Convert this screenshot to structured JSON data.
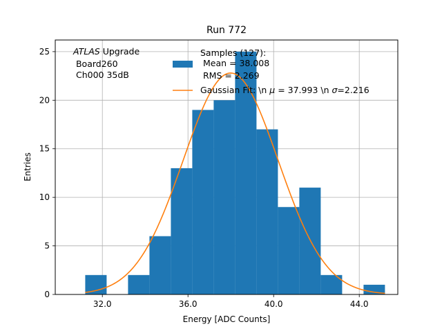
{
  "chart_data": {
    "type": "bar",
    "title": "Run 772",
    "xlabel": "Energy [ADC Counts]",
    "ylabel": "Entries",
    "xlim": [
      29.8,
      45.8
    ],
    "ylim": [
      0,
      26.2
    ],
    "grid": true,
    "x_ticks": [
      32.0,
      36.0,
      40.0,
      44.0
    ],
    "x_tick_labels": [
      "32.0",
      "36.0",
      "40.0",
      "44.0"
    ],
    "y_ticks": [
      0,
      5,
      10,
      15,
      20,
      25
    ],
    "y_tick_labels": [
      "0",
      "5",
      "10",
      "15",
      "20",
      "25"
    ],
    "histogram": {
      "name": "Samples (127):\n Mean = 38.008\n RMS = 2.269",
      "color": "#1f77b4",
      "bins": [
        {
          "x0": 31.2,
          "x1": 32.2,
          "count": 2
        },
        {
          "x0": 32.2,
          "x1": 33.2,
          "count": 0
        },
        {
          "x0": 33.2,
          "x1": 34.2,
          "count": 2
        },
        {
          "x0": 34.2,
          "x1": 35.2,
          "count": 6
        },
        {
          "x0": 35.2,
          "x1": 36.2,
          "count": 13
        },
        {
          "x0": 36.2,
          "x1": 37.2,
          "count": 19
        },
        {
          "x0": 37.2,
          "x1": 38.2,
          "count": 20
        },
        {
          "x0": 38.2,
          "x1": 39.2,
          "count": 25
        },
        {
          "x0": 39.2,
          "x1": 40.2,
          "count": 17
        },
        {
          "x0": 40.2,
          "x1": 41.2,
          "count": 9
        },
        {
          "x0": 41.2,
          "x1": 42.2,
          "count": 11
        },
        {
          "x0": 42.2,
          "x1": 43.2,
          "count": 2
        },
        {
          "x0": 43.2,
          "x1": 44.2,
          "count": 0
        },
        {
          "x0": 44.2,
          "x1": 45.2,
          "count": 1
        }
      ]
    },
    "fit": {
      "name": "Gaussian Fit: \\n μ = 37.993 \\n σ=2.216",
      "color": "#ff7f0e",
      "mu": 37.993,
      "sigma": 2.216,
      "amplitude": 22.8,
      "x_range": [
        31.2,
        45.2
      ]
    },
    "legend": {
      "placement": "top-right",
      "hist_lines": [
        "Samples (127):",
        " Mean = 38.008",
        " RMS = 2.269"
      ],
      "fit_prefix": "Gaussian Fit: \\n ",
      "fit_mu_symbol": "μ",
      "fit_mu_text": " = 37.993 \\n ",
      "fit_sigma_symbol": "σ",
      "fit_sigma_text": "=2.216"
    },
    "annotation": {
      "atlas_word": "ATLAS",
      "atlas_rest": " Upgrade",
      "line2": " Board260",
      "line3": " Ch000 35dB"
    }
  }
}
